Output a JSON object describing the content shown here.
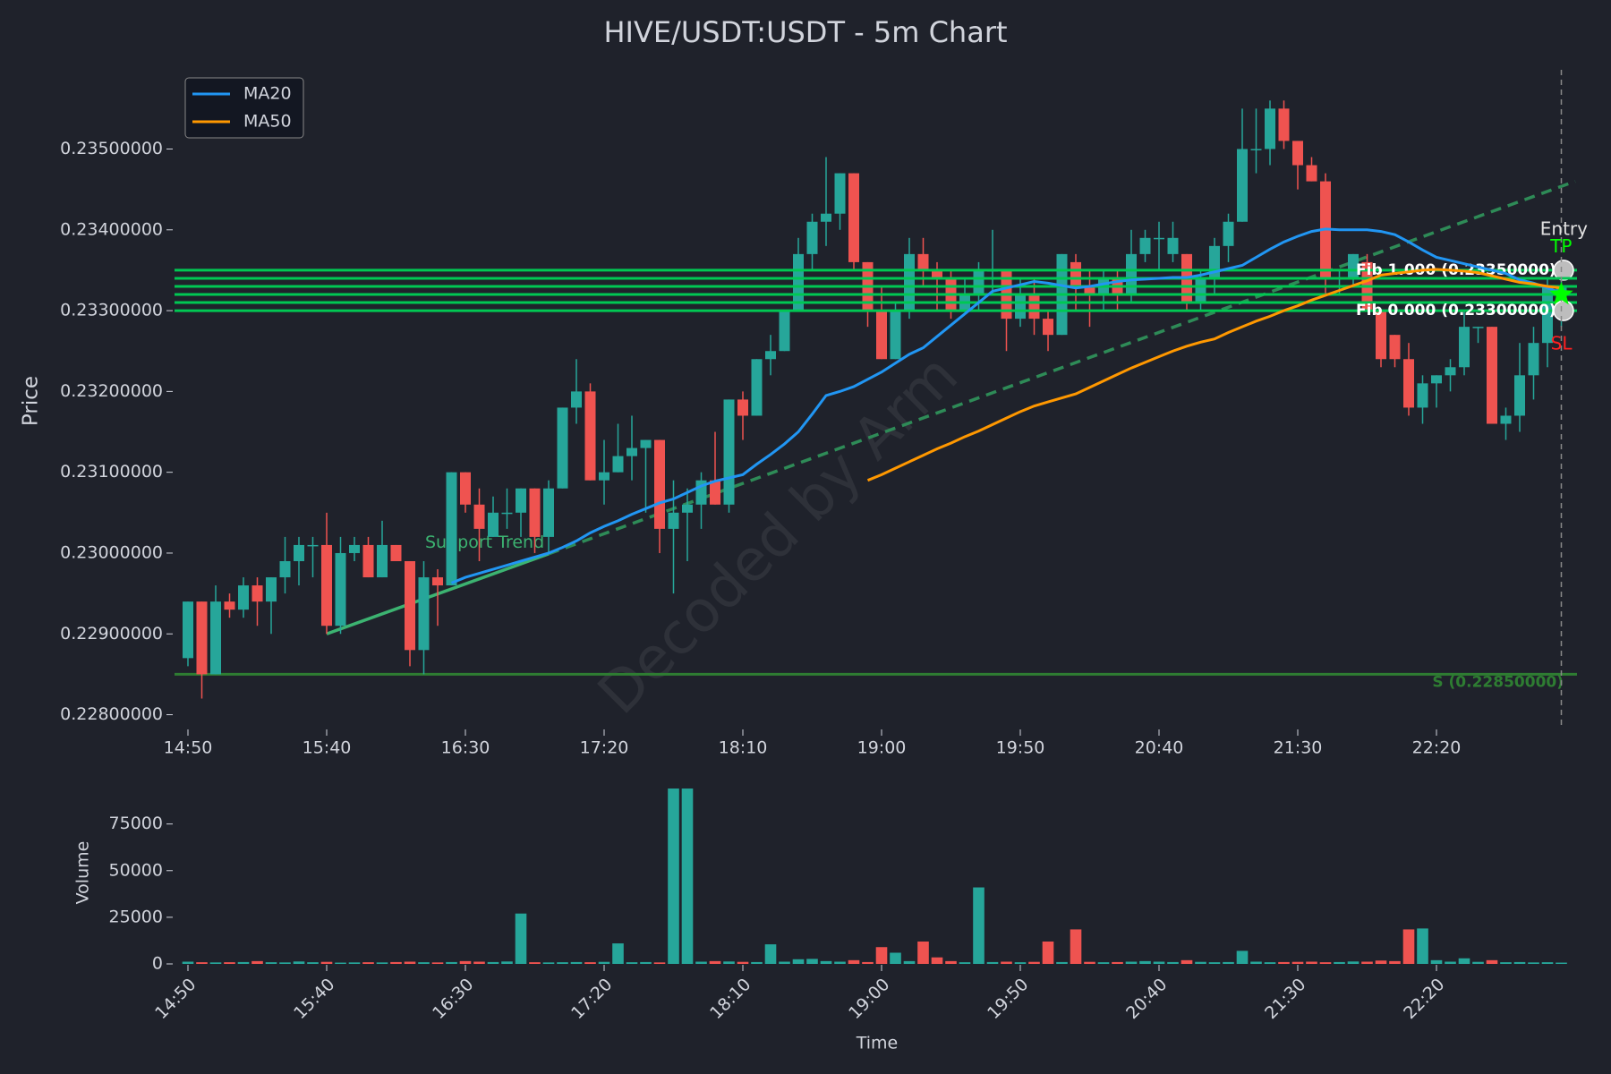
{
  "chart_data": [
    {
      "type": "candlestick",
      "title": "HIVE/USDT:USDT - 5m Chart",
      "y_label": "Price",
      "watermark": "Decoded by Arm",
      "categories": [
        "14:50",
        null,
        null,
        null,
        null,
        null,
        null,
        null,
        null,
        null,
        "15:40",
        null,
        null,
        null,
        null,
        null,
        null,
        null,
        null,
        null,
        "16:30",
        null,
        null,
        null,
        null,
        null,
        null,
        null,
        null,
        null,
        "17:20",
        null,
        null,
        null,
        null,
        null,
        null,
        null,
        null,
        null,
        "18:10",
        null,
        null,
        null,
        null,
        null,
        null,
        null,
        null,
        null,
        "19:00",
        null,
        null,
        null,
        null,
        null,
        null,
        null,
        null,
        null,
        "19:50",
        null,
        null,
        null,
        null,
        null,
        null,
        null,
        null,
        null,
        "20:40",
        null,
        null,
        null,
        null,
        null,
        null,
        null,
        null,
        null,
        "21:30",
        null,
        null,
        null,
        null,
        null,
        null,
        null,
        null,
        null,
        "22:20",
        null,
        null,
        null,
        null,
        null,
        null,
        null,
        null,
        null
      ],
      "open": [
        0.2287,
        0.2294,
        0.2285,
        0.2294,
        0.2293,
        0.2296,
        0.2294,
        0.2297,
        0.2299,
        0.2301,
        0.2301,
        0.2291,
        0.23,
        0.2301,
        0.2297,
        0.2301,
        0.2299,
        0.2288,
        0.2297,
        0.2296,
        0.231,
        0.2306,
        0.2302,
        0.2305,
        0.2305,
        0.2308,
        0.2302,
        0.2308,
        0.2318,
        0.232,
        0.2309,
        0.231,
        0.2312,
        0.2313,
        0.2314,
        0.2303,
        0.2305,
        0.2306,
        0.2309,
        0.2306,
        0.2319,
        0.2317,
        0.2324,
        0.2325,
        0.233,
        0.2337,
        0.2341,
        0.2342,
        0.2347,
        0.2336,
        0.233,
        0.2324,
        0.233,
        0.2337,
        0.2335,
        0.2334,
        0.233,
        0.2332,
        0.2335,
        0.2335,
        0.2329,
        0.2332,
        0.2329,
        0.2327,
        0.2336,
        0.2333,
        0.2332,
        0.2334,
        0.2332,
        0.2337,
        0.2339,
        0.2337,
        0.2337,
        0.2331,
        0.2334,
        0.2338,
        0.2341,
        0.235,
        0.235,
        0.2355,
        0.2351,
        0.2348,
        0.2346,
        0.2334,
        0.2334,
        0.2336,
        0.233,
        0.2327,
        0.2324,
        0.2318,
        0.2321,
        0.2322,
        0.2323,
        0.2328,
        0.2328,
        0.2316,
        0.2317,
        0.2322,
        0.2326,
        0.233
      ],
      "high": [
        0.2294,
        0.2294,
        0.2296,
        0.2295,
        0.2297,
        0.2297,
        0.2297,
        0.2302,
        0.2302,
        0.2302,
        0.2305,
        0.2302,
        0.2302,
        0.2302,
        0.2304,
        0.2301,
        0.2299,
        0.2299,
        0.2298,
        0.231,
        0.231,
        0.2308,
        0.2307,
        0.2308,
        0.2308,
        0.2308,
        0.2309,
        0.2318,
        0.2324,
        0.2321,
        0.2314,
        0.2316,
        0.2317,
        0.2314,
        0.2314,
        0.2309,
        0.2308,
        0.231,
        0.2315,
        0.2319,
        0.232,
        0.2324,
        0.2327,
        0.233,
        0.2339,
        0.2342,
        0.2349,
        0.2347,
        0.2347,
        0.2336,
        0.2333,
        0.2331,
        0.2339,
        0.2339,
        0.2336,
        0.2335,
        0.2334,
        0.2336,
        0.234,
        0.2335,
        0.2334,
        0.2334,
        0.233,
        0.2337,
        0.2337,
        0.2335,
        0.2335,
        0.2335,
        0.234,
        0.234,
        0.2341,
        0.2341,
        0.2337,
        0.2335,
        0.2339,
        0.2342,
        0.2355,
        0.2355,
        0.2356,
        0.2356,
        0.2351,
        0.2349,
        0.2347,
        0.2335,
        0.2337,
        0.2337,
        0.233,
        0.2327,
        0.2326,
        0.2322,
        0.2322,
        0.2324,
        0.233,
        0.2328,
        0.2328,
        0.2318,
        0.2326,
        0.2328,
        0.2334,
        0.2334
      ],
      "low": [
        0.2286,
        0.2282,
        0.2285,
        0.2292,
        0.2292,
        0.2291,
        0.229,
        0.2295,
        0.2296,
        0.2297,
        0.229,
        0.229,
        0.2299,
        0.2297,
        0.2297,
        0.2299,
        0.2286,
        0.2285,
        0.2291,
        0.2296,
        0.2305,
        0.2299,
        0.2302,
        0.2303,
        0.2302,
        0.23,
        0.23,
        0.2308,
        0.2316,
        0.2309,
        0.2306,
        0.231,
        0.2309,
        0.2305,
        0.23,
        0.2295,
        0.2299,
        0.2303,
        0.2306,
        0.2305,
        0.2314,
        0.2317,
        0.2322,
        0.2325,
        0.233,
        0.2335,
        0.2338,
        0.234,
        0.2335,
        0.2328,
        0.2324,
        0.2324,
        0.2329,
        0.2333,
        0.233,
        0.2329,
        0.233,
        0.233,
        0.2332,
        0.2325,
        0.2328,
        0.2327,
        0.2325,
        0.2327,
        0.233,
        0.2328,
        0.233,
        0.233,
        0.2331,
        0.2336,
        0.2335,
        0.2336,
        0.233,
        0.233,
        0.2332,
        0.2336,
        0.2341,
        0.2347,
        0.2348,
        0.235,
        0.2345,
        0.2346,
        0.2332,
        0.2332,
        0.2333,
        0.233,
        0.2323,
        0.2323,
        0.2317,
        0.2316,
        0.2318,
        0.232,
        0.2322,
        0.2326,
        0.2316,
        0.2314,
        0.2315,
        0.2319,
        0.2323,
        0.2328
      ],
      "close": [
        0.2294,
        0.2285,
        0.2294,
        0.2293,
        0.2296,
        0.2294,
        0.2297,
        0.2299,
        0.2301,
        0.2301,
        0.2291,
        0.23,
        0.2301,
        0.2297,
        0.2301,
        0.2299,
        0.2288,
        0.2297,
        0.2296,
        0.231,
        0.2306,
        0.2303,
        0.2305,
        0.2305,
        0.2308,
        0.2302,
        0.2308,
        0.2318,
        0.232,
        0.2309,
        0.231,
        0.2312,
        0.2313,
        0.2314,
        0.2303,
        0.2305,
        0.2306,
        0.2309,
        0.2306,
        0.2319,
        0.2317,
        0.2324,
        0.2325,
        0.233,
        0.2337,
        0.2341,
        0.2342,
        0.2347,
        0.2336,
        0.233,
        0.2324,
        0.233,
        0.2337,
        0.2335,
        0.2334,
        0.233,
        0.2332,
        0.2335,
        0.2335,
        0.2329,
        0.2332,
        0.2329,
        0.2327,
        0.2337,
        0.2333,
        0.2332,
        0.2334,
        0.2332,
        0.2337,
        0.2339,
        0.2339,
        0.2339,
        0.2331,
        0.2334,
        0.2338,
        0.2341,
        0.235,
        0.235,
        0.2355,
        0.2351,
        0.2348,
        0.2346,
        0.2334,
        0.2334,
        0.2337,
        0.233,
        0.2324,
        0.2324,
        0.2318,
        0.2321,
        0.2322,
        0.2323,
        0.2328,
        0.2328,
        0.2316,
        0.2317,
        0.2322,
        0.2326,
        0.2333,
        0.2333
      ],
      "up_color": "#26a69a",
      "down_color": "#ef5350",
      "series": [
        {
          "name": "MA20",
          "color": "#2196f3",
          "values": [
            null,
            null,
            null,
            null,
            null,
            null,
            null,
            null,
            null,
            null,
            null,
            null,
            null,
            null,
            null,
            null,
            null,
            null,
            null,
            0.22963,
            0.2297,
            0.22975,
            0.2298,
            0.22985,
            0.2299,
            0.22995,
            0.23,
            0.23007,
            0.23015,
            0.23025,
            0.23033,
            0.2304,
            0.23048,
            0.23055,
            0.23062,
            0.23067,
            0.23075,
            0.23083,
            0.23089,
            0.23093,
            0.23097,
            0.2311,
            0.23122,
            0.23135,
            0.2315,
            0.23172,
            0.23195,
            0.232,
            0.23206,
            0.23215,
            0.23224,
            0.23235,
            0.23246,
            0.23254,
            0.23268,
            0.23282,
            0.23296,
            0.2331,
            0.23324,
            0.23328,
            0.23332,
            0.23336,
            0.23334,
            0.23331,
            0.23328,
            0.2333,
            0.23333,
            0.23336,
            0.23338,
            0.23339,
            0.2334,
            0.23341,
            0.23341,
            0.23344,
            0.23348,
            0.23352,
            0.23356,
            0.23366,
            0.23376,
            0.23385,
            0.23392,
            0.23398,
            0.23401,
            0.234,
            0.234,
            0.234,
            0.23398,
            0.23394,
            0.23385,
            0.23375,
            0.23366,
            0.23362,
            0.23358,
            0.23354,
            0.2335,
            0.23346,
            0.23338,
            0.23334,
            0.23328,
            0.23322
          ]
        },
        {
          "name": "MA50",
          "color": "#ff9800",
          "values": [
            null,
            null,
            null,
            null,
            null,
            null,
            null,
            null,
            null,
            null,
            null,
            null,
            null,
            null,
            null,
            null,
            null,
            null,
            null,
            null,
            null,
            null,
            null,
            null,
            null,
            null,
            null,
            null,
            null,
            null,
            null,
            null,
            null,
            null,
            null,
            null,
            null,
            null,
            null,
            null,
            null,
            null,
            null,
            null,
            null,
            null,
            null,
            null,
            null,
            0.2309,
            0.23097,
            0.23105,
            0.23113,
            0.23121,
            0.23129,
            0.23136,
            0.23144,
            0.23151,
            0.23159,
            0.23167,
            0.23175,
            0.23182,
            0.23187,
            0.23192,
            0.23197,
            0.23205,
            0.23213,
            0.23221,
            0.23229,
            0.23236,
            0.23243,
            0.2325,
            0.23256,
            0.23261,
            0.23265,
            0.23273,
            0.2328,
            0.23287,
            0.23293,
            0.233,
            0.23306,
            0.23313,
            0.23319,
            0.23325,
            0.23331,
            0.23337,
            0.23344,
            0.23346,
            0.23348,
            0.2335,
            0.23351,
            0.2335,
            0.23349,
            0.23347,
            0.23343,
            0.23339,
            0.23335,
            0.23333,
            0.2333,
            0.23328
          ]
        }
      ],
      "legend": "upper left",
      "ylim": [
        0.22784,
        0.23598
      ],
      "yticks": [
        {
          "value": 0.228,
          "label": "0.22800000"
        },
        {
          "value": 0.229,
          "label": "0.22900000"
        },
        {
          "value": 0.23,
          "label": "0.23000000"
        },
        {
          "value": 0.231,
          "label": "0.23100000"
        },
        {
          "value": 0.232,
          "label": "0.23200000"
        },
        {
          "value": 0.233,
          "label": "0.23300000"
        },
        {
          "value": 0.234,
          "label": "0.23400000"
        },
        {
          "value": 0.235,
          "label": "0.23500000"
        }
      ],
      "fib_color": "#00c853",
      "fib_lines": [
        {
          "value": 0.2335,
          "label": "Fib 1.000 (0.23350000)"
        },
        {
          "value": 0.2334
        },
        {
          "value": 0.2333
        },
        {
          "value": 0.2332
        },
        {
          "value": 0.2331
        },
        {
          "value": 0.233,
          "label": "Fib 0.000 (0.23300000)"
        }
      ],
      "support": {
        "value": 0.2285,
        "label": "S (0.22850000)",
        "color": "#2e7d32"
      },
      "trend_line": {
        "label": "Support Trend",
        "color": "#3cb371",
        "x": [
          10,
          26
        ],
        "values": [
          0.229,
          0.22999
        ]
      },
      "trend_projection": {
        "color": "#2e8b57",
        "x": [
          26,
          100
        ],
        "values": [
          0.22999,
          0.2346
        ]
      },
      "entry_marker": {
        "value": 0.2332,
        "color": "#00ff00"
      },
      "signals": [
        {
          "text": "Entry",
          "value": 0.234,
          "color": "#e0e0e0"
        },
        {
          "text": "TP",
          "value": 0.23378,
          "color": "#00ff00"
        },
        {
          "text": "SL",
          "value": 0.23258,
          "color": "#ff2020"
        }
      ]
    },
    {
      "type": "bar",
      "y_label": "Volume",
      "x_label": "Time",
      "categories": [
        "14:50",
        null,
        null,
        null,
        null,
        null,
        null,
        null,
        null,
        null,
        "15:40",
        null,
        null,
        null,
        null,
        null,
        null,
        null,
        null,
        null,
        "16:30",
        null,
        null,
        null,
        null,
        null,
        null,
        null,
        null,
        null,
        "17:20",
        null,
        null,
        null,
        null,
        null,
        null,
        null,
        null,
        null,
        "18:10",
        null,
        null,
        null,
        null,
        null,
        null,
        null,
        null,
        null,
        "19:00",
        null,
        null,
        null,
        null,
        null,
        null,
        null,
        null,
        null,
        "19:50",
        null,
        null,
        null,
        null,
        null,
        null,
        null,
        null,
        null,
        "20:40",
        null,
        null,
        null,
        null,
        null,
        null,
        null,
        null,
        null,
        "21:30",
        null,
        null,
        null,
        null,
        null,
        null,
        null,
        null,
        null,
        "22:20",
        null,
        null,
        null,
        null,
        null,
        null,
        null,
        null,
        null
      ],
      "values": [
        1200,
        900,
        800,
        900,
        1000,
        1500,
        900,
        800,
        1300,
        900,
        1100,
        700,
        800,
        900,
        800,
        1000,
        1200,
        900,
        800,
        1000,
        1500,
        1200,
        1000,
        1300,
        27000,
        900,
        800,
        900,
        1000,
        900,
        1100,
        11000,
        900,
        1000,
        800,
        94000,
        94000,
        1200,
        1500,
        1300,
        1100,
        1000,
        10500,
        1200,
        2500,
        2700,
        1500,
        1200,
        2000,
        1000,
        9000,
        6000,
        1500,
        12000,
        3500,
        1500,
        900,
        41000,
        1000,
        1200,
        900,
        1100,
        12000,
        1000,
        18500,
        1100,
        900,
        1000,
        1200,
        1500,
        1200,
        1000,
        2000,
        1100,
        900,
        1000,
        7000,
        1200,
        900,
        1000,
        1100,
        1200,
        900,
        1000,
        1300,
        1200,
        1800,
        1500,
        18500,
        19000,
        2000,
        1200,
        3000,
        1100,
        2000,
        900,
        1000,
        800,
        900,
        700
      ],
      "ylim": [
        0,
        94500
      ],
      "yticks": [
        0,
        25000,
        50000,
        75000
      ]
    }
  ]
}
